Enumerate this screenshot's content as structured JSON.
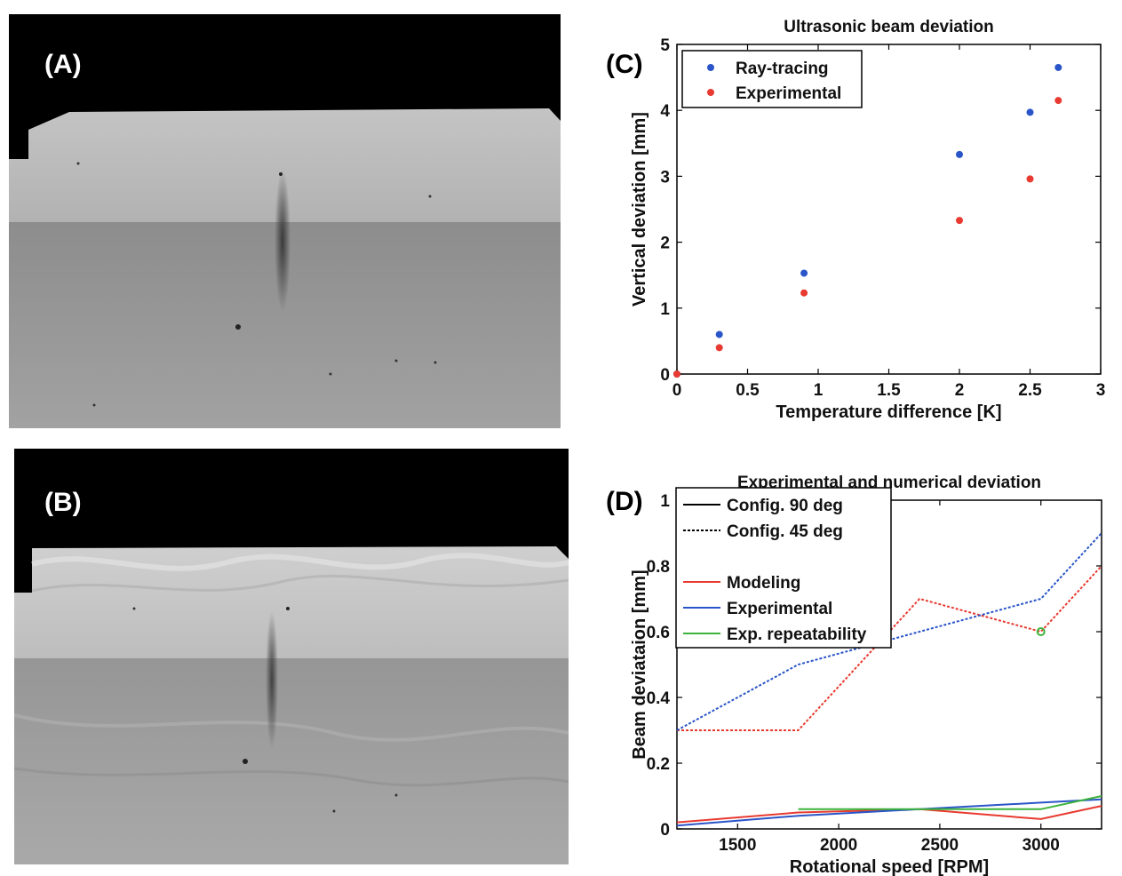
{
  "panels": {
    "a_label": "(A)",
    "b_label": "(B)",
    "c_label": "(C)",
    "d_label": "(D)"
  },
  "chart_data": [
    {
      "type": "scatter",
      "title": "Ultrasonic beam deviation",
      "xlabel": "Temperature difference [K]",
      "ylabel": "Vertical deviation [mm]",
      "xlim": [
        0,
        3
      ],
      "ylim": [
        0,
        5
      ],
      "xticks": [
        "0",
        "0.5",
        "1",
        "1.5",
        "2",
        "2.5",
        "3"
      ],
      "yticks": [
        "0",
        "1",
        "2",
        "3",
        "4",
        "5"
      ],
      "legend_position": "top-left",
      "grid": false,
      "series": [
        {
          "name": "Ray-tracing",
          "color": "#2a55c8",
          "x": [
            0,
            0.3,
            0.9,
            2.0,
            2.5,
            2.7
          ],
          "y": [
            0,
            0.6,
            1.53,
            3.33,
            3.97,
            4.65
          ]
        },
        {
          "name": "Experimental",
          "color": "#e83a30",
          "x": [
            0,
            0.3,
            0.9,
            2.0,
            2.5,
            2.7
          ],
          "y": [
            0,
            0.4,
            1.23,
            2.33,
            2.96,
            4.15
          ]
        }
      ]
    },
    {
      "type": "line",
      "title": "Experimental and numerical deviation",
      "xlabel": "Rotational speed [RPM]",
      "ylabel": "Beam deviataion [mm]",
      "xlim": [
        1200,
        3300
      ],
      "ylim": [
        0,
        1
      ],
      "xticks": [
        "1500",
        "2000",
        "2500",
        "3000"
      ],
      "yticks": [
        "0",
        "0.2",
        "0.4",
        "0.6",
        "0.8",
        "1"
      ],
      "legend_position": "top-left",
      "grid": false,
      "legend": [
        {
          "name": "Config. 90 deg",
          "color": "#000000",
          "dash": "solid"
        },
        {
          "name": "Config. 45 deg",
          "color": "#000000",
          "dash": "dotted"
        },
        {
          "name": "",
          "color": "",
          "dash": "none"
        },
        {
          "name": "Modeling",
          "color": "#e83a30",
          "dash": "solid"
        },
        {
          "name": "Experimental",
          "color": "#2a55c8",
          "dash": "solid"
        },
        {
          "name": "Exp. repeatability",
          "color": "#3cb43c",
          "dash": "solid"
        }
      ],
      "series": [
        {
          "label": "Modeling 45 deg",
          "color": "#e83a30",
          "dash": "dotted",
          "x": [
            1200,
            1800,
            2400,
            3000,
            3300
          ],
          "y": [
            0.3,
            0.3,
            0.7,
            0.6,
            0.8
          ]
        },
        {
          "label": "Experimental 45 deg",
          "color": "#2a55c8",
          "dash": "dotted",
          "x": [
            1200,
            1800,
            3000,
            3300
          ],
          "y": [
            0.3,
            0.5,
            0.7,
            0.9
          ]
        },
        {
          "label": "Modeling 90 deg",
          "color": "#e83a30",
          "dash": "solid",
          "x": [
            1200,
            1800,
            2400,
            3000,
            3300
          ],
          "y": [
            0.02,
            0.05,
            0.06,
            0.03,
            0.07
          ]
        },
        {
          "label": "Experimental 90 deg",
          "color": "#2a55c8",
          "dash": "solid",
          "x": [
            1200,
            1800,
            2400,
            3000,
            3300
          ],
          "y": [
            0.01,
            0.04,
            0.06,
            0.08,
            0.09
          ]
        },
        {
          "label": "Exp. repeatability 90 deg",
          "color": "#3cb43c",
          "dash": "solid",
          "x": [
            1800,
            2400,
            3000,
            3300
          ],
          "y": [
            0.06,
            0.06,
            0.06,
            0.1
          ]
        }
      ],
      "markers": [
        {
          "label": "Exp. repeatability 45 deg",
          "color": "#3cb43c",
          "x": 3000,
          "y": 0.6
        }
      ]
    }
  ]
}
